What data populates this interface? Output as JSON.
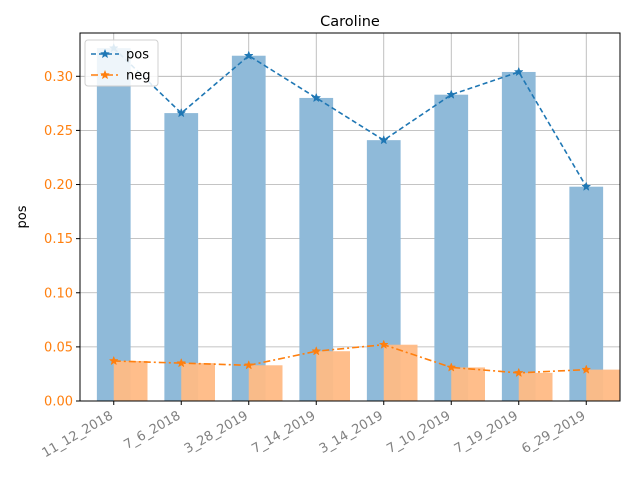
{
  "chart_data": {
    "type": "bar",
    "title": "Caroline",
    "xlabel": "",
    "ylabel": "pos",
    "ylim": [
      0,
      0.34
    ],
    "yticks": [
      0.0,
      0.05,
      0.1,
      0.15,
      0.2,
      0.25,
      0.3
    ],
    "ytick_labels": [
      "0.00",
      "0.05",
      "0.10",
      "0.15",
      "0.20",
      "0.25",
      "0.30"
    ],
    "categories": [
      "11_12_2018",
      "7_6_2018",
      "3_28_2019",
      "7_14_2019",
      "3_14_2019",
      "7_10_2019",
      "7_19_2019",
      "6_29_2019"
    ],
    "series": [
      {
        "name": "pos",
        "values": [
          0.326,
          0.266,
          0.319,
          0.28,
          0.241,
          0.283,
          0.304,
          0.198
        ],
        "color": "#1f77b4",
        "bar_color": "#8fbad9",
        "line_style": "dashed",
        "marker": "star"
      },
      {
        "name": "neg",
        "values": [
          0.037,
          0.035,
          0.033,
          0.046,
          0.052,
          0.031,
          0.026,
          0.029
        ],
        "color": "#ff7f0e",
        "bar_color": "#ffbb85",
        "line_style": "dash-dot",
        "marker": "star"
      }
    ],
    "grid": true,
    "legend_position": "top-left",
    "ytick_color": "#ff7f0e",
    "xtick_color": "#808080",
    "xtick_rotation": 30
  }
}
